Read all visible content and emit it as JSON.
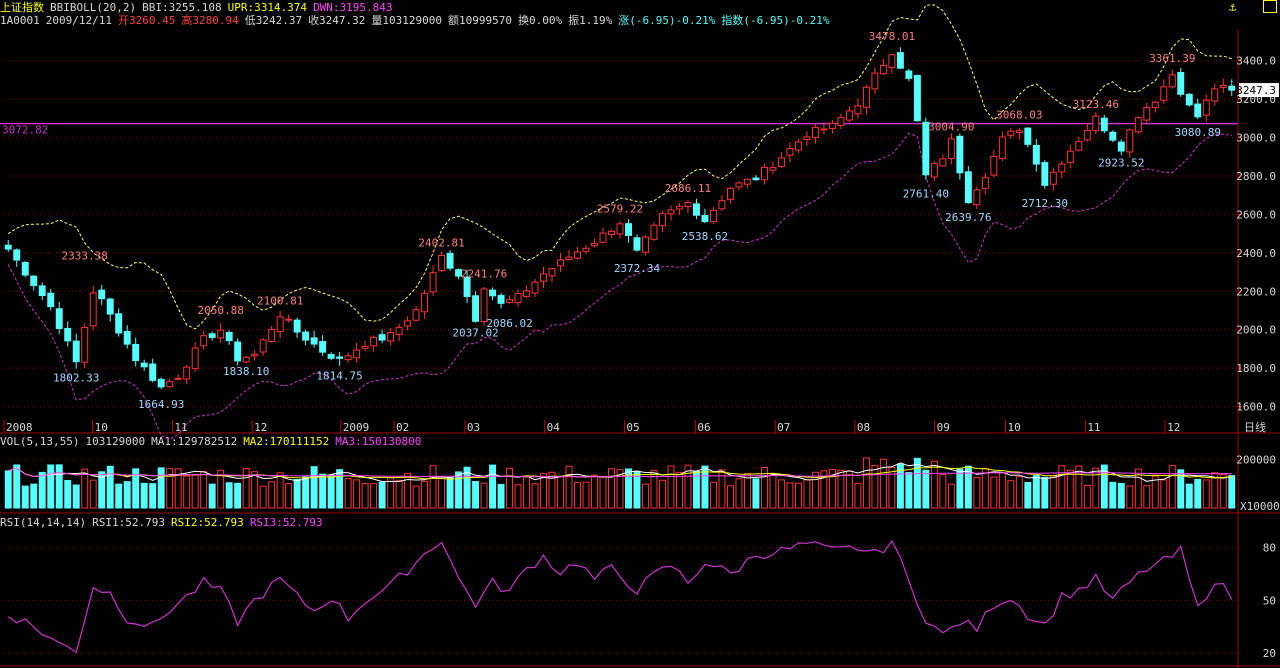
{
  "header": {
    "index_name": "上证指数",
    "indicator": "BBIBOLL(20,2)",
    "bbi": "BBI:3255.108",
    "upr": "UPR:3314.374",
    "dwn": "DWN:3195.843",
    "code": "1A0001",
    "date": "2009/12/11",
    "open": "开3260.45",
    "high": "高3280.94",
    "low": "低3242.37",
    "close": "收3247.32",
    "volume": "量103129000",
    "amount": "额10999570",
    "turnover": "换0.00%",
    "amplitude": "振1.19%",
    "change": "涨(-6.95)-0.21%",
    "index_change": "指数(-6.95)-0.21%"
  },
  "volume_header": {
    "label": "VOL(5,13,55)",
    "vol": "103129000",
    "ma1": "MA1:129782512",
    "ma2": "MA2:170111152",
    "ma3": "MA3:150130800"
  },
  "rsi_header": {
    "label": "RSI(14,14,14)",
    "rsi1": "RSI1:52.793",
    "rsi2": "RSI2:52.793",
    "rsi3": "RSI3:52.793"
  },
  "colors": {
    "up": "#ff3333",
    "down": "#55ffff",
    "grid": "#800000",
    "upper_band": "#ffff66",
    "lower_band": "#cc33cc",
    "ref_line": "#cc33cc",
    "rsi": "#cc33cc",
    "ma1": "#ffffff",
    "ma2": "#ffff00",
    "ma3": "#ff44ff"
  },
  "chart_data": [
    {
      "type": "candlestick",
      "panel": "price",
      "y_ticks": [
        "3400.0",
        "3200.0",
        "3000.0",
        "2800.0",
        "2600.0",
        "2400.0",
        "2200.0",
        "2000.0",
        "1800.0",
        "1600.0"
      ],
      "ylim": [
        1530,
        3560
      ],
      "x_labels": [
        "2008",
        "10",
        "11",
        "12",
        "2009",
        "02",
        "03",
        "04",
        "05",
        "06",
        "07",
        "08",
        "09",
        "10",
        "11",
        "12"
      ],
      "x_unit_label": "日线",
      "current_price_label": "3247.3",
      "reference_line": {
        "value": 3072.82,
        "label": "3072.82"
      },
      "annotations": [
        {
          "label": "2333.38",
          "value": 2333.38,
          "kind": "high",
          "week": 9
        },
        {
          "label": "1802.33",
          "value": 1802.33,
          "kind": "low",
          "week": 8
        },
        {
          "label": "1664.93",
          "value": 1664.93,
          "kind": "low",
          "week": 18
        },
        {
          "label": "2050.88",
          "value": 2050.88,
          "kind": "high",
          "week": 25
        },
        {
          "label": "1838.10",
          "value": 1838.1,
          "kind": "low",
          "week": 28
        },
        {
          "label": "2100.81",
          "value": 2100.81,
          "kind": "high",
          "week": 32
        },
        {
          "label": "1814.75",
          "value": 1814.75,
          "kind": "low",
          "week": 39
        },
        {
          "label": "2402.81",
          "value": 2402.81,
          "kind": "high",
          "week": 51
        },
        {
          "label": "2241.76",
          "value": 2241.76,
          "kind": "high",
          "week": 56
        },
        {
          "label": "2037.02",
          "value": 2037.02,
          "kind": "low",
          "week": 55
        },
        {
          "label": "2086.02",
          "value": 2086.02,
          "kind": "low",
          "week": 59
        },
        {
          "label": "2579.22",
          "value": 2579.22,
          "kind": "high",
          "week": 72
        },
        {
          "label": "2372.34",
          "value": 2372.34,
          "kind": "low",
          "week": 74
        },
        {
          "label": "2686.11",
          "value": 2686.11,
          "kind": "high",
          "week": 80
        },
        {
          "label": "2538.62",
          "value": 2538.62,
          "kind": "low",
          "week": 82
        },
        {
          "label": "3478.01",
          "value": 3478.01,
          "kind": "high",
          "week": 104
        },
        {
          "label": "3004.90",
          "value": 3004.9,
          "kind": "high",
          "week": 111
        },
        {
          "label": "2761.40",
          "value": 2761.4,
          "kind": "low",
          "week": 108
        },
        {
          "label": "2639.76",
          "value": 2639.76,
          "kind": "low",
          "week": 113
        },
        {
          "label": "3068.03",
          "value": 3068.03,
          "kind": "high",
          "week": 119
        },
        {
          "label": "2712.30",
          "value": 2712.3,
          "kind": "low",
          "week": 122
        },
        {
          "label": "3123.46",
          "value": 3123.46,
          "kind": "high",
          "week": 128
        },
        {
          "label": "2923.52",
          "value": 2923.52,
          "kind": "low",
          "week": 131
        },
        {
          "label": "3361.39",
          "value": 3361.39,
          "kind": "high",
          "week": 137
        },
        {
          "label": "3080.89",
          "value": 3080.89,
          "kind": "low",
          "week": 140
        }
      ],
      "close_waypoints": [
        [
          0,
          2420
        ],
        [
          2,
          2300
        ],
        [
          5,
          2120
        ],
        [
          8,
          1830
        ],
        [
          10,
          2200
        ],
        [
          11,
          2150
        ],
        [
          13,
          2000
        ],
        [
          15,
          1850
        ],
        [
          18,
          1700
        ],
        [
          20,
          1760
        ],
        [
          23,
          1950
        ],
        [
          25,
          2000
        ],
        [
          27,
          1850
        ],
        [
          29,
          1870
        ],
        [
          32,
          2080
        ],
        [
          34,
          1990
        ],
        [
          37,
          1890
        ],
        [
          39,
          1840
        ],
        [
          42,
          1930
        ],
        [
          45,
          1970
        ],
        [
          48,
          2100
        ],
        [
          51,
          2380
        ],
        [
          53,
          2290
        ],
        [
          55,
          2060
        ],
        [
          56,
          2230
        ],
        [
          58,
          2130
        ],
        [
          60,
          2170
        ],
        [
          63,
          2290
        ],
        [
          66,
          2380
        ],
        [
          69,
          2460
        ],
        [
          72,
          2560
        ],
        [
          74,
          2400
        ],
        [
          77,
          2590
        ],
        [
          80,
          2660
        ],
        [
          82,
          2570
        ],
        [
          85,
          2740
        ],
        [
          88,
          2790
        ],
        [
          91,
          2900
        ],
        [
          94,
          3020
        ],
        [
          97,
          3060
        ],
        [
          100,
          3180
        ],
        [
          102,
          3320
        ],
        [
          104,
          3450
        ],
        [
          106,
          3300
        ],
        [
          107,
          3080
        ],
        [
          108,
          2800
        ],
        [
          110,
          2900
        ],
        [
          111,
          2980
        ],
        [
          113,
          2680
        ],
        [
          115,
          2810
        ],
        [
          117,
          2990
        ],
        [
          119,
          3050
        ],
        [
          121,
          2880
        ],
        [
          122,
          2760
        ],
        [
          124,
          2880
        ],
        [
          126,
          2990
        ],
        [
          128,
          3100
        ],
        [
          130,
          3000
        ],
        [
          131,
          2950
        ],
        [
          133,
          3120
        ],
        [
          135,
          3200
        ],
        [
          137,
          3330
        ],
        [
          139,
          3160
        ],
        [
          140,
          3110
        ],
        [
          142,
          3260
        ],
        [
          144,
          3247
        ]
      ]
    },
    {
      "type": "bar",
      "panel": "volume",
      "y_ticks": [
        "200000"
      ],
      "unit_label": "X10000",
      "note": "volume bars colored by candle direction, with MA lines"
    },
    {
      "type": "line",
      "panel": "rsi",
      "y_ticks": [
        "80",
        "50",
        "20"
      ],
      "ylim": [
        15,
        90
      ],
      "rsi_waypoints": [
        [
          0,
          42
        ],
        [
          2,
          38
        ],
        [
          4,
          32
        ],
        [
          6,
          25
        ],
        [
          8,
          22
        ],
        [
          10,
          58
        ],
        [
          12,
          54
        ],
        [
          14,
          40
        ],
        [
          17,
          35
        ],
        [
          19,
          45
        ],
        [
          21,
          52
        ],
        [
          23,
          60
        ],
        [
          25,
          55
        ],
        [
          27,
          38
        ],
        [
          29,
          50
        ],
        [
          32,
          62
        ],
        [
          34,
          52
        ],
        [
          36,
          44
        ],
        [
          38,
          52
        ],
        [
          40,
          40
        ],
        [
          42,
          50
        ],
        [
          45,
          58
        ],
        [
          48,
          72
        ],
        [
          51,
          85
        ],
        [
          53,
          62
        ],
        [
          55,
          48
        ],
        [
          57,
          60
        ],
        [
          59,
          55
        ],
        [
          61,
          68
        ],
        [
          63,
          75
        ],
        [
          65,
          66
        ],
        [
          67,
          72
        ],
        [
          69,
          62
        ],
        [
          71,
          68
        ],
        [
          74,
          56
        ],
        [
          76,
          64
        ],
        [
          78,
          70
        ],
        [
          80,
          60
        ],
        [
          82,
          72
        ],
        [
          85,
          65
        ],
        [
          88,
          76
        ],
        [
          91,
          78
        ],
        [
          94,
          82
        ],
        [
          97,
          78
        ],
        [
          100,
          80
        ],
        [
          102,
          76
        ],
        [
          104,
          84
        ],
        [
          106,
          60
        ],
        [
          108,
          40
        ],
        [
          110,
          30
        ],
        [
          112,
          38
        ],
        [
          114,
          34
        ],
        [
          116,
          48
        ],
        [
          118,
          52
        ],
        [
          120,
          42
        ],
        [
          122,
          36
        ],
        [
          124,
          52
        ],
        [
          126,
          56
        ],
        [
          128,
          62
        ],
        [
          130,
          50
        ],
        [
          132,
          60
        ],
        [
          134,
          68
        ],
        [
          136,
          72
        ],
        [
          138,
          78
        ],
        [
          140,
          45
        ],
        [
          142,
          62
        ],
        [
          144,
          52
        ]
      ]
    }
  ]
}
